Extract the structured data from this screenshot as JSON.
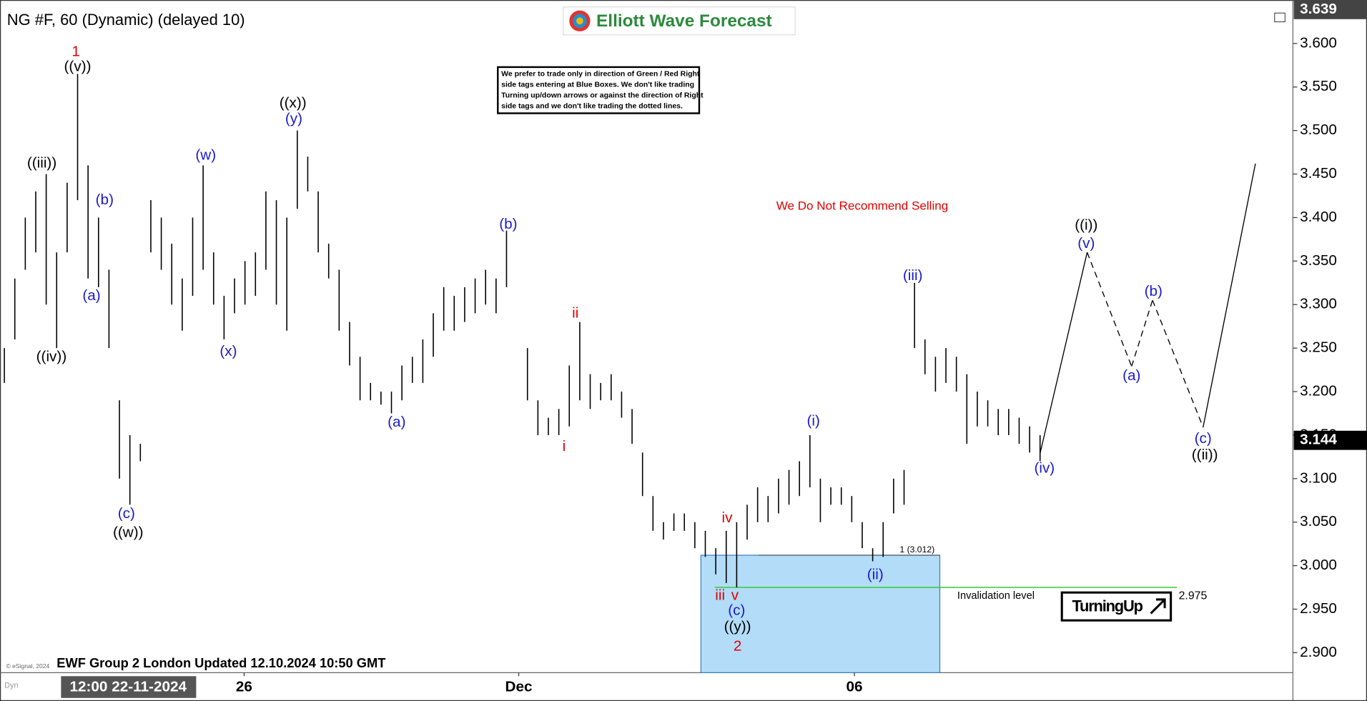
{
  "header": {
    "symbol": "NG #F, 60 (Dynamic) (delayed 10)",
    "logo": "Elliott Wave Forecast"
  },
  "notice": [
    "We prefer to trade only in direction of Green / Red Right",
    "side tags entering at Blue Boxes. We don't like trading",
    "Turning up/down arrows or against the direction of Right",
    "side tags and we don't like trading the dotted lines."
  ],
  "footer": {
    "updated": "EWF Group 2 London Updated 12.10.2024 10:50 GMT",
    "copyright": "© eSignal, 2024",
    "mode": "Dyn"
  },
  "chart_data": {
    "type": "ohlc",
    "ylim": [
      2.877,
      3.65
    ],
    "yticks": [
      {
        "value": 3.6,
        "label": "3.600"
      },
      {
        "value": 3.55,
        "label": "3.550"
      },
      {
        "value": 3.5,
        "label": "3.500"
      },
      {
        "value": 3.45,
        "label": "3.450"
      },
      {
        "value": 3.4,
        "label": "3.400"
      },
      {
        "value": 3.35,
        "label": "3.350"
      },
      {
        "value": 3.3,
        "label": "3.300"
      },
      {
        "value": 3.25,
        "label": "3.250"
      },
      {
        "value": 3.2,
        "label": "3.200"
      },
      {
        "value": 3.15,
        "label": "3.150"
      },
      {
        "value": 3.1,
        "label": "3.100"
      },
      {
        "value": 3.05,
        "label": "3.050"
      },
      {
        "value": 3,
        "label": "3.000"
      },
      {
        "value": 2.95,
        "label": "2.950"
      },
      {
        "value": 2.9,
        "label": "2.900"
      }
    ],
    "x_labels": [
      "26",
      "Dec",
      "06"
    ],
    "cursor_label": "12:00 22-11-2024",
    "color": "#000000",
    "highs": [
      3.25,
      3.33,
      3.4,
      3.43,
      3.45,
      3.36,
      3.44,
      3.565,
      3.46,
      3.4,
      3.34,
      3.19,
      3.15,
      3.14,
      3.42,
      3.4,
      3.37,
      3.33,
      3.4,
      3.46,
      3.36,
      3.31,
      3.33,
      3.35,
      3.36,
      3.43,
      3.42,
      3.4,
      3.5,
      3.47,
      3.43,
      3.37,
      3.34,
      3.28,
      3.24,
      3.21,
      3.2,
      3.2,
      3.23,
      3.24,
      3.26,
      3.29,
      3.32,
      3.31,
      3.32,
      3.33,
      3.34,
      3.33,
      3.385,
      null,
      3.25,
      3.19,
      3.17,
      3.18,
      3.23,
      3.28,
      3.22,
      3.21,
      3.22,
      3.2,
      3.18,
      3.13,
      3.08,
      3.05,
      3.06,
      3.06,
      3.05,
      3.04,
      3.02,
      3.04,
      3.05,
      3.07,
      3.09,
      3.08,
      3.1,
      3.11,
      3.12,
      3.15,
      3.1,
      3.09,
      3.09,
      3.08,
      3.05,
      3.02,
      3.05,
      3.1,
      3.11,
      3.325,
      3.26,
      3.24,
      3.25,
      3.24,
      3.22,
      3.2,
      3.19,
      3.18,
      3.18,
      3.17,
      3.16,
      3.15
    ],
    "lows": [
      3.21,
      3.26,
      3.34,
      3.36,
      3.3,
      3.25,
      3.36,
      3.42,
      3.33,
      3.32,
      3.25,
      3.1,
      3.07,
      3.12,
      3.36,
      3.34,
      3.3,
      3.27,
      3.31,
      3.34,
      3.3,
      3.26,
      3.29,
      3.3,
      3.31,
      3.34,
      3.3,
      3.27,
      3.41,
      3.43,
      3.36,
      3.33,
      3.27,
      3.23,
      3.19,
      3.19,
      3.185,
      3.175,
      3.19,
      3.21,
      3.21,
      3.24,
      3.27,
      3.27,
      3.28,
      3.29,
      3.3,
      3.29,
      3.32,
      null,
      3.19,
      3.15,
      3.15,
      3.15,
      3.16,
      3.19,
      3.18,
      3.19,
      3.19,
      3.17,
      3.14,
      3.08,
      3.04,
      3.03,
      3.04,
      3.04,
      3.02,
      3.01,
      2.99,
      2.98,
      2.975,
      3.03,
      3.05,
      3.05,
      3.06,
      3.07,
      3.08,
      3.09,
      3.05,
      3.07,
      3.07,
      3.05,
      3.02,
      3.005,
      3.01,
      3.06,
      3.07,
      3.25,
      3.22,
      3.2,
      3.21,
      3.2,
      3.14,
      3.16,
      3.16,
      3.15,
      3.15,
      3.14,
      3.13,
      3.12
    ],
    "projection": {
      "values": [
        3.129,
        3.36,
        3.229,
        3.305,
        3.159,
        3.462
      ],
      "dashed": [
        false,
        true,
        true,
        true,
        false
      ]
    },
    "wave_labels": [
      {
        "text": "1",
        "color": "#e00000"
      },
      {
        "text": "((v))",
        "color": "#000000"
      },
      {
        "text": "((iii))",
        "color": "#000000"
      },
      {
        "text": "((iv))",
        "color": "#000000"
      },
      {
        "text": "(b)",
        "color": "#1a1acc"
      },
      {
        "text": "(a)",
        "color": "#1a1acc"
      },
      {
        "text": "(c)",
        "color": "#1a1acc"
      },
      {
        "text": "((w))",
        "color": "#000000"
      },
      {
        "text": "(w)",
        "color": "#1a1acc"
      },
      {
        "text": "(x)",
        "color": "#1a1acc"
      },
      {
        "text": "((x))",
        "color": "#000000"
      },
      {
        "text": "(y)",
        "color": "#1a1acc"
      },
      {
        "text": "(a)",
        "color": "#1a1acc"
      },
      {
        "text": "(b)",
        "color": "#1a1acc"
      },
      {
        "text": "ii",
        "color": "#e00000"
      },
      {
        "text": "i",
        "color": "#e00000"
      },
      {
        "text": "iv",
        "color": "#e00000"
      },
      {
        "text": "iii",
        "color": "#e00000"
      },
      {
        "text": "v",
        "color": "#e00000"
      },
      {
        "text": "(c)",
        "color": "#1a1acc"
      },
      {
        "text": "((y))",
        "color": "#000000"
      },
      {
        "text": "2",
        "color": "#e00000"
      },
      {
        "text": "(i)",
        "color": "#1a1acc"
      },
      {
        "text": "(ii)",
        "color": "#1a1acc"
      },
      {
        "text": "(iii)",
        "color": "#1a1acc"
      },
      {
        "text": "(iv)",
        "color": "#1a1acc"
      },
      {
        "text": "((i))",
        "color": "#000000"
      },
      {
        "text": "(v)",
        "color": "#1a1acc"
      },
      {
        "text": "(a)",
        "color": "#1a1acc"
      },
      {
        "text": "(b)",
        "color": "#1a1acc"
      },
      {
        "text": "(c)",
        "color": "#1a1acc"
      },
      {
        "text": "((ii))",
        "color": "#000000"
      }
    ],
    "blue_box": {
      "top": 3.012,
      "label": "1 (3.012)",
      "color": "#b3dcf9"
    },
    "invalidation": {
      "value": 2.975,
      "label": "Invalidation level",
      "color": "#33cc33"
    },
    "note": "We Do Not Recommend Selling",
    "signal": "TurningUp",
    "price_tags": [
      3.639,
      3.144
    ]
  }
}
